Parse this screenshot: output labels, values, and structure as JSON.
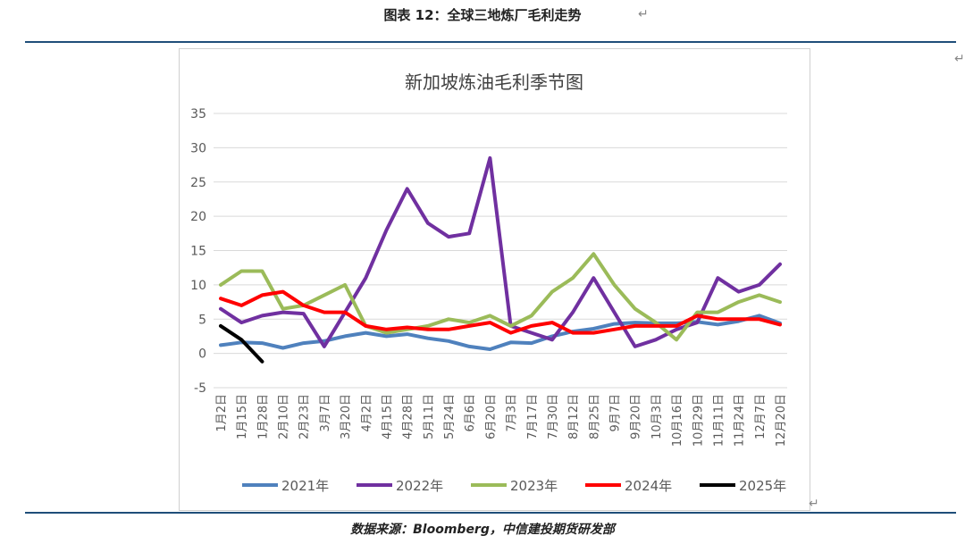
{
  "figure_title": "图表 12：全球三地炼厂毛利走势",
  "source": "数据来源：Bloomberg，中信建投期货研发部",
  "chart_data": {
    "type": "line",
    "title": "新加坡炼油毛利季节图",
    "xlabel": "",
    "ylabel": "",
    "ylim": [
      -5,
      35
    ],
    "yticks": [
      -5,
      0,
      5,
      10,
      15,
      20,
      25,
      30,
      35
    ],
    "grid": true,
    "legend_position": "bottom",
    "categories": [
      "1月2日",
      "1月15日",
      "1月28日",
      "2月10日",
      "2月23日",
      "3月7日",
      "3月20日",
      "4月2日",
      "4月15日",
      "4月28日",
      "5月11日",
      "5月24日",
      "6月6日",
      "6月20日",
      "7月3日",
      "7月17日",
      "7月30日",
      "8月12日",
      "8月25日",
      "9月7日",
      "9月20日",
      "10月3日",
      "10月16日",
      "10月29日",
      "11月11日",
      "11月24日",
      "12月7日",
      "12月20日"
    ],
    "series": [
      {
        "name": "2021年",
        "color": "#4f81bd",
        "values": [
          1.2,
          1.6,
          1.5,
          0.8,
          1.5,
          1.8,
          2.5,
          3,
          2.5,
          2.8,
          2.2,
          1.8,
          1,
          0.6,
          1.6,
          1.5,
          2.5,
          3.2,
          3.6,
          4.3,
          4.5,
          4.4,
          4.4,
          4.6,
          4.2,
          4.7,
          5.5,
          4.4
        ]
      },
      {
        "name": "2022年",
        "color": "#7030a0",
        "values": [
          6.5,
          4.5,
          5.5,
          6,
          5.8,
          1,
          6,
          11,
          18,
          24,
          19,
          17,
          17.5,
          28.5,
          4,
          3,
          2,
          6,
          11,
          6,
          1,
          2,
          3.5,
          4.5,
          11,
          9,
          10,
          13
        ]
      },
      {
        "name": "2023年",
        "color": "#9bbb59",
        "values": [
          10,
          12,
          12,
          6.5,
          7,
          8.5,
          10,
          4,
          3,
          3.5,
          4,
          5,
          4.5,
          5.5,
          4,
          5.5,
          9,
          11,
          14.5,
          10,
          6.5,
          4.5,
          2,
          6,
          6,
          7.5,
          8.5,
          7.5
        ]
      },
      {
        "name": "2024年",
        "color": "#ff0000",
        "values": [
          8,
          7,
          8.5,
          9,
          7,
          6,
          6,
          4,
          3.5,
          3.8,
          3.5,
          3.5,
          4,
          4.5,
          3,
          4,
          4.5,
          3,
          3,
          3.5,
          4,
          4,
          4,
          5.5,
          5,
          5,
          5,
          4.2
        ]
      },
      {
        "name": "2025年",
        "color": "#000000",
        "values": [
          4,
          2,
          -1.2,
          null,
          null,
          null,
          null,
          null,
          null,
          null,
          null,
          null,
          null,
          null,
          null,
          null,
          null,
          null,
          null,
          null,
          null,
          null,
          null,
          null,
          null,
          null,
          null,
          null
        ]
      }
    ]
  }
}
